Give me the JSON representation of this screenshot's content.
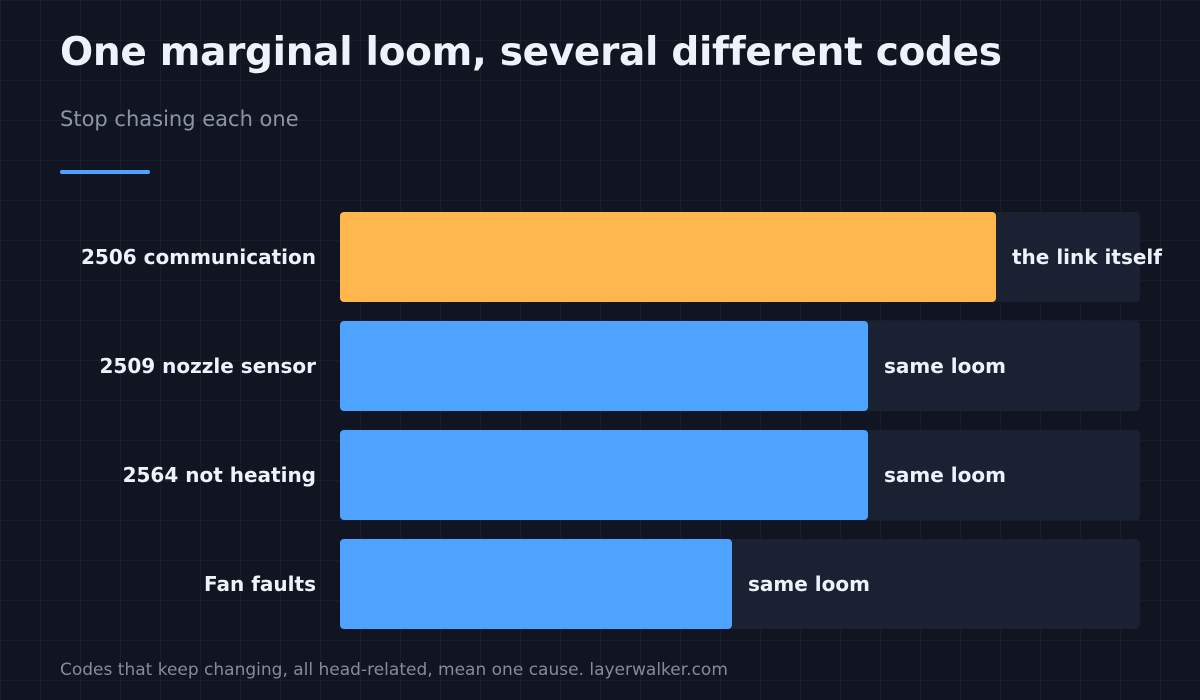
{
  "title": "One marginal loom, several different codes",
  "subtitle": "Stop chasing each one",
  "footer": "Codes that keep changing, all head-related, mean one cause. layerwalker.com",
  "colors": {
    "accent_rule": "#4da3ff",
    "track": "#1a2133",
    "highlight_bar": "#ffb74d",
    "bar": "#4da3ff"
  },
  "chart_data": {
    "type": "bar",
    "orientation": "horizontal",
    "title": "One marginal loom, several different codes",
    "subtitle": "Stop chasing each one",
    "xlabel": "",
    "ylabel": "",
    "xlim": [
      0,
      100
    ],
    "grid": false,
    "legend": "none",
    "categories": [
      "2506 communication",
      "2509 nozzle sensor",
      "2564 not heating",
      "Fan faults"
    ],
    "values": [
      82,
      66,
      66,
      49
    ],
    "bar_labels": [
      "the link itself",
      "same loom",
      "same loom",
      "same loom"
    ],
    "highlight_index": 0
  }
}
